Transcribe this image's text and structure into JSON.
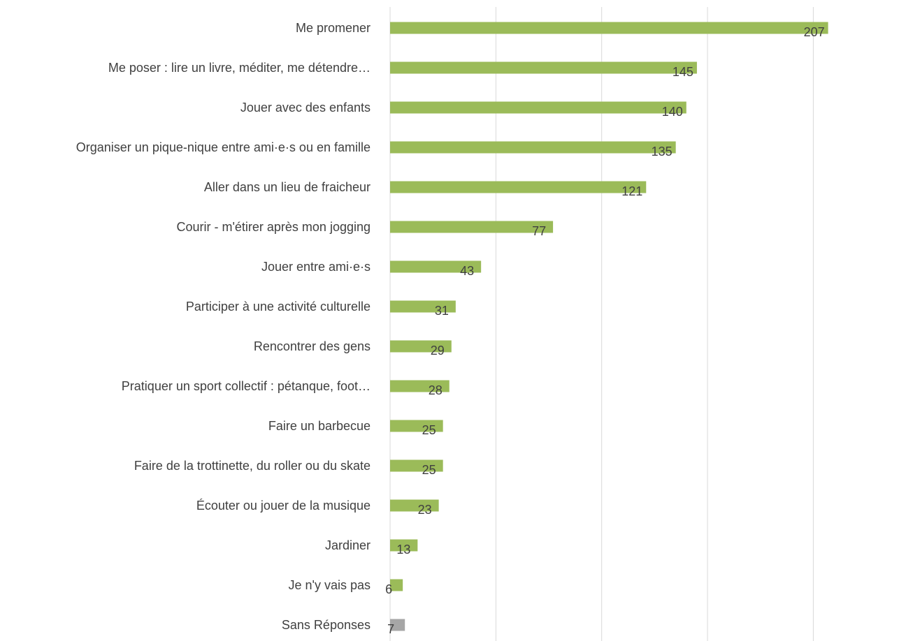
{
  "chart_data": {
    "type": "bar",
    "orientation": "horizontal",
    "categories": [
      "Me promener",
      "Me poser : lire un livre, méditer, me détendre…",
      "Jouer avec des enfants",
      "Organiser un pique-nique entre ami·e·s ou en famille",
      "Aller dans un lieu de fraicheur",
      "Courir - m'étirer après mon jogging",
      "Jouer entre ami·e·s",
      "Participer à une activité culturelle",
      "Rencontrer des gens",
      "Pratiquer un sport collectif : pétanque, foot…",
      "Faire un barbecue",
      "Faire de la trottinette, du roller ou du skate",
      "Écouter ou jouer de la musique",
      "Jardiner",
      "Je n'y vais pas",
      "Sans Réponses"
    ],
    "values": [
      207,
      145,
      140,
      135,
      121,
      77,
      43,
      31,
      29,
      28,
      25,
      25,
      23,
      13,
      6,
      7
    ],
    "bar_colors": [
      "#9bbb59",
      "#9bbb59",
      "#9bbb59",
      "#9bbb59",
      "#9bbb59",
      "#9bbb59",
      "#9bbb59",
      "#9bbb59",
      "#9bbb59",
      "#9bbb59",
      "#9bbb59",
      "#9bbb59",
      "#9bbb59",
      "#9bbb59",
      "#9bbb59",
      "#a6a6a6"
    ],
    "xlim": [
      0,
      220
    ],
    "x_gridlines": [
      0,
      50,
      100,
      150,
      200
    ],
    "grid": true,
    "legend": "none",
    "title": "",
    "xlabel": "",
    "ylabel": ""
  }
}
